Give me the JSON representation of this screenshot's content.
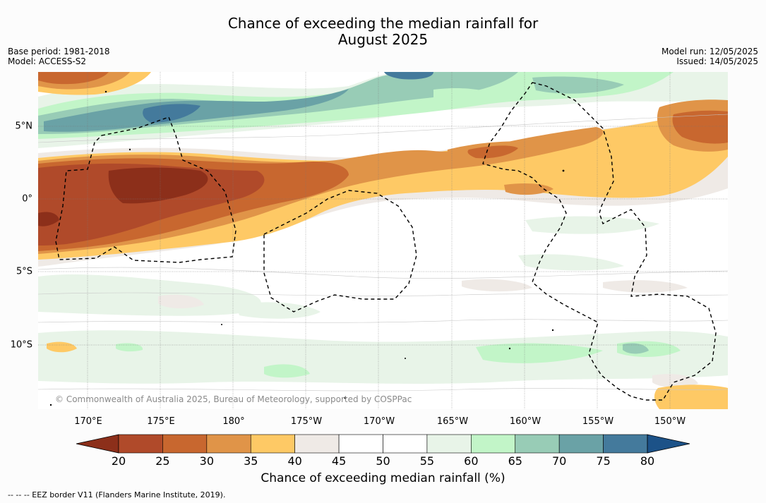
{
  "title": {
    "line1": "Chance of exceeding the median rainfall for",
    "line2": "August 2025"
  },
  "meta": {
    "base_period": "Base period: 1981-2018",
    "model": "Model: ACCESS-S2",
    "model_run": "Model run: 12/05/2025",
    "issued": "Issued: 14/05/2025"
  },
  "map": {
    "lon_labels": [
      "170°E",
      "175°E",
      "180°",
      "175°W",
      "170°W",
      "165°W",
      "160°W",
      "155°W",
      "150°W"
    ],
    "lat_labels": [
      "5°N",
      "0°",
      "5°S",
      "10°S"
    ],
    "copyright": "© Commonwealth of Australia 2025, Bureau of Meteorology, supported by COSPPac"
  },
  "colorbar": {
    "ticks": [
      "20",
      "25",
      "30",
      "35",
      "40",
      "45",
      "50",
      "55",
      "60",
      "65",
      "70",
      "75",
      "80"
    ],
    "colors": [
      "#8c2f1a",
      "#b04a2a",
      "#c8672f",
      "#e09448",
      "#fec965",
      "#efeae6",
      "#ffffff",
      "#ffffff",
      "#e8f4e8",
      "#c2f5c8",
      "#98ccb6",
      "#6aa2a6",
      "#447a9c",
      "#1c5288"
    ],
    "label": "Chance of exceeding median rainfall (%)"
  },
  "footer": "-- -- -- EEZ border V11 (Flanders Marine Institute, 2019)."
}
